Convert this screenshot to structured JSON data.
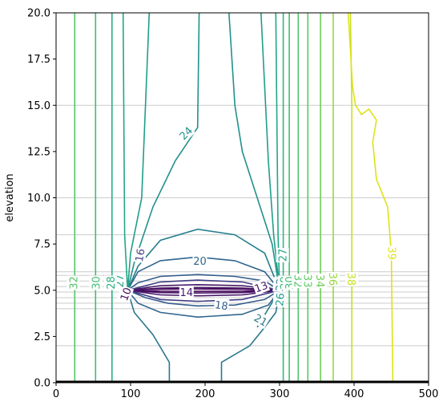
{
  "chart_data": {
    "type": "contour",
    "title": "",
    "xlabel": "",
    "ylabel": "elevation",
    "xlim": [
      0,
      500
    ],
    "ylim": [
      0,
      20
    ],
    "x_ticks": [
      "0",
      "100",
      "200",
      "300",
      "400",
      "500"
    ],
    "y_ticks": [
      "0.0",
      "2.5",
      "5.0",
      "7.5",
      "10.0",
      "12.5",
      "15.0",
      "17.5",
      "20.0"
    ],
    "grid_lines_y": [
      0,
      2,
      4,
      4.3,
      4.6,
      4.9,
      5.2,
      5.5,
      5.8,
      6,
      8,
      10,
      15
    ],
    "contour_levels": [
      {
        "level": 10,
        "label": "10",
        "color": "#46075a",
        "points": [
          [
            96,
            5.0
          ],
          [
            140,
            4.95
          ],
          [
            190,
            4.94
          ],
          [
            250,
            4.95
          ],
          [
            300,
            5.0
          ],
          [
            250,
            5.06
          ],
          [
            190,
            5.07
          ],
          [
            140,
            5.06
          ],
          [
            96,
            5.0
          ]
        ]
      },
      {
        "level": 13,
        "label": "13",
        "color": "#471365",
        "points": [
          [
            96,
            5.0
          ],
          [
            140,
            4.87
          ],
          [
            190,
            4.85
          ],
          [
            250,
            4.87
          ],
          [
            300,
            5.0
          ],
          [
            250,
            5.12
          ],
          [
            190,
            5.14
          ],
          [
            140,
            5.12
          ],
          [
            96,
            5.0
          ]
        ]
      },
      {
        "level": 14,
        "label": "14",
        "color": "#48186a",
        "points": [
          [
            96,
            5.0
          ],
          [
            140,
            4.75
          ],
          [
            190,
            4.7
          ],
          [
            250,
            4.75
          ],
          [
            300,
            5.0
          ],
          [
            250,
            5.25
          ],
          [
            190,
            5.3
          ],
          [
            140,
            5.25
          ],
          [
            96,
            5.0
          ]
        ]
      },
      {
        "level": 16,
        "label": "16",
        "color": "#423f85",
        "points": [
          [
            96,
            5.0
          ],
          [
            140,
            4.5
          ],
          [
            190,
            4.4
          ],
          [
            250,
            4.5
          ],
          [
            300,
            5.0
          ],
          [
            250,
            5.45
          ],
          [
            190,
            5.55
          ],
          [
            140,
            5.45
          ],
          [
            96,
            5.0
          ]
        ]
      },
      {
        "level": 18,
        "label": "18",
        "color": "#355e8d",
        "points": [
          [
            96,
            5.0
          ],
          [
            120,
            4.6
          ],
          [
            150,
            4.3
          ],
          [
            190,
            4.15
          ],
          [
            240,
            4.2
          ],
          [
            280,
            4.5
          ],
          [
            300,
            5.0
          ],
          [
            280,
            5.5
          ],
          [
            240,
            5.75
          ],
          [
            190,
            5.85
          ],
          [
            140,
            5.75
          ],
          [
            110,
            5.4
          ],
          [
            96,
            5.0
          ]
        ]
      },
      {
        "level": 20,
        "label": "20",
        "color": "#31668e",
        "points": [
          [
            96,
            5.0
          ],
          [
            110,
            4.3
          ],
          [
            140,
            3.8
          ],
          [
            190,
            3.55
          ],
          [
            250,
            3.7
          ],
          [
            285,
            4.2
          ],
          [
            300,
            5.0
          ],
          [
            280,
            6.0
          ],
          [
            240,
            6.6
          ],
          [
            190,
            6.8
          ],
          [
            140,
            6.6
          ],
          [
            110,
            6.0
          ],
          [
            96,
            5.0
          ]
        ]
      },
      {
        "level": 21,
        "label": "21",
        "color": "#2a788e",
        "points": [
          [
            96,
            5.0
          ],
          [
            105,
            3.8
          ],
          [
            130,
            2.6
          ],
          [
            152,
            1.1
          ],
          [
            152,
            0.0
          ]
        ]
      },
      {
        "level": 21,
        "label": "",
        "color": "#2a788e",
        "points": [
          [
            300,
            5.0
          ],
          [
            295,
            3.8
          ],
          [
            280,
            3.0
          ],
          [
            260,
            2.0
          ],
          [
            222,
            1.1
          ],
          [
            222,
            0.0
          ]
        ]
      },
      {
        "level": 22,
        "label": "22",
        "color": "#277f8e",
        "points": [
          [
            96,
            5.0
          ],
          [
            110,
            6.3
          ],
          [
            140,
            7.7
          ],
          [
            190,
            8.3
          ],
          [
            240,
            8.0
          ],
          [
            280,
            7.0
          ],
          [
            300,
            5.0
          ],
          [
            285,
            4.0
          ],
          [
            270,
            3.0
          ]
        ]
      },
      {
        "level": 24,
        "label": "24",
        "color": "#21918c",
        "points": [
          [
            96,
            5.0
          ],
          [
            105,
            6.5
          ],
          [
            130,
            9.5
          ],
          [
            160,
            12.0
          ],
          [
            190,
            13.8
          ],
          [
            192,
            20.0
          ]
        ]
      },
      {
        "level": 24,
        "label": "",
        "color": "#21918c",
        "points": [
          [
            300,
            5.0
          ],
          [
            290,
            7.5
          ],
          [
            270,
            10.0
          ],
          [
            250,
            12.5
          ],
          [
            240,
            15.0
          ],
          [
            232,
            20.0
          ]
        ]
      },
      {
        "level": 26,
        "label": "26",
        "color": "#1f9e89",
        "points": [
          [
            96,
            5.0
          ],
          [
            100,
            7.0
          ],
          [
            115,
            10.0
          ],
          [
            125,
            20.0
          ]
        ]
      },
      {
        "level": 26,
        "label": "",
        "color": "#1f9e89",
        "points": [
          [
            300,
            5.0
          ],
          [
            292,
            8.0
          ],
          [
            285,
            12.0
          ],
          [
            280,
            16.0
          ],
          [
            275,
            20.0
          ]
        ]
      },
      {
        "level": 27,
        "label": "27",
        "color": "#22a785",
        "points": [
          [
            96,
            5.0
          ],
          [
            92,
            8.0
          ],
          [
            90,
            20.0
          ]
        ]
      },
      {
        "level": 27,
        "label": "",
        "color": "#22a785",
        "points": [
          [
            300,
            5.0
          ],
          [
            298,
            8.0
          ],
          [
            295,
            20.0
          ]
        ]
      },
      {
        "level": 28,
        "label": "28",
        "color": "#2ab07f",
        "points": [
          [
            75,
            0.0
          ],
          [
            75,
            20.0
          ]
        ]
      },
      {
        "level": 29,
        "label": "29",
        "color": "#35b779",
        "points": [
          [
            305,
            0.0
          ],
          [
            305,
            20.0
          ]
        ]
      },
      {
        "level": 30,
        "label": "30",
        "color": "#40bd72",
        "points": [
          [
            53,
            0.0
          ],
          [
            53,
            20.0
          ]
        ]
      },
      {
        "level": 30,
        "label": "",
        "color": "#40bd72",
        "points": [
          [
            313,
            0.0
          ],
          [
            313,
            20.0
          ]
        ]
      },
      {
        "level": 32,
        "label": "32",
        "color": "#52c569",
        "points": [
          [
            25,
            0.0
          ],
          [
            25,
            20.0
          ]
        ]
      },
      {
        "level": 32,
        "label": "",
        "color": "#52c569",
        "points": [
          [
            325,
            0.0
          ],
          [
            325,
            20.0
          ]
        ]
      },
      {
        "level": 33,
        "label": "33",
        "color": "#5ec962",
        "points": [
          [
            338,
            0.0
          ],
          [
            338,
            20.0
          ]
        ]
      },
      {
        "level": 34,
        "label": "34",
        "color": "#6ece58",
        "points": [
          [
            355,
            0.0
          ],
          [
            355,
            20.0
          ]
        ]
      },
      {
        "level": 36,
        "label": "36",
        "color": "#95d840",
        "points": [
          [
            372,
            0.0
          ],
          [
            372,
            20.0
          ]
        ]
      },
      {
        "level": 38,
        "label": "38",
        "color": "#c8e020",
        "points": [
          [
            397,
            0.0
          ],
          [
            397,
            15.0
          ],
          [
            395,
            20.0
          ]
        ]
      },
      {
        "level": 39,
        "label": "39",
        "color": "#dde318",
        "points": [
          [
            452,
            0.0
          ],
          [
            450,
            7.0
          ],
          [
            445,
            9.5
          ],
          [
            430,
            11.0
          ],
          [
            425,
            13.0
          ],
          [
            430,
            14.2
          ],
          [
            420,
            14.8
          ],
          [
            410,
            14.5
          ],
          [
            402,
            15.0
          ],
          [
            398,
            16.0
          ],
          [
            395,
            18.0
          ],
          [
            392,
            20.0
          ]
        ]
      }
    ],
    "label_positions": [
      {
        "text": "10",
        "x": 93,
        "y": 4.8,
        "rotate": -70
      },
      {
        "text": "14",
        "x": 175,
        "y": 4.9,
        "rotate": 0
      },
      {
        "text": "13",
        "x": 275,
        "y": 5.2,
        "rotate": -20
      },
      {
        "text": "16",
        "x": 112,
        "y": 6.9,
        "rotate": -80
      },
      {
        "text": "18",
        "x": 222,
        "y": 4.2,
        "rotate": 8
      },
      {
        "text": "20",
        "x": 193,
        "y": 6.6,
        "rotate": 0
      },
      {
        "text": "21",
        "x": 275,
        "y": 3.4,
        "rotate": 30
      },
      {
        "text": "22",
        "x": 300,
        "y": 5.3,
        "rotate": -85
      },
      {
        "text": "24",
        "x": 174,
        "y": 13.5,
        "rotate": -45
      },
      {
        "text": "26",
        "x": 300,
        "y": 4.5,
        "rotate": -85
      },
      {
        "text": "27",
        "x": 85,
        "y": 5.5,
        "rotate": -90
      },
      {
        "text": "27",
        "x": 304,
        "y": 6.9,
        "rotate": -90
      },
      {
        "text": "28",
        "x": 73,
        "y": 5.4,
        "rotate": -90
      },
      {
        "text": "29",
        "x": 306,
        "y": 5.4,
        "rotate": -90
      },
      {
        "text": "30",
        "x": 53,
        "y": 5.4,
        "rotate": -90
      },
      {
        "text": "30",
        "x": 313,
        "y": 5.4,
        "rotate": -90
      },
      {
        "text": "32",
        "x": 23,
        "y": 5.4,
        "rotate": -90
      },
      {
        "text": "32",
        "x": 325,
        "y": 5.5,
        "rotate": 90
      },
      {
        "text": "33",
        "x": 338,
        "y": 5.5,
        "rotate": 90
      },
      {
        "text": "34",
        "x": 355,
        "y": 5.5,
        "rotate": 90
      },
      {
        "text": "36",
        "x": 372,
        "y": 5.6,
        "rotate": 90
      },
      {
        "text": "38",
        "x": 397,
        "y": 5.6,
        "rotate": 90
      },
      {
        "text": "39",
        "x": 451,
        "y": 7.0,
        "rotate": 90
      }
    ]
  }
}
